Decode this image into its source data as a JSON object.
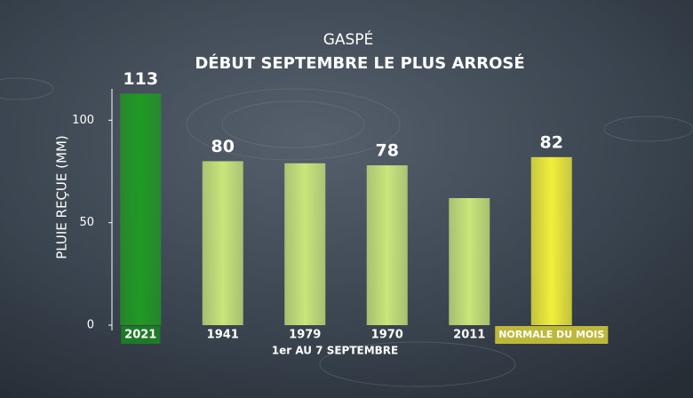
{
  "chart_data": {
    "type": "bar",
    "title": "GASPÉ",
    "subtitle": "DÉBUT SEPTEMBRE LE PLUS ARROSÉ",
    "x_label": "1er AU 7 SEPTEMBRE",
    "y_label": "PLUIE REÇUE (MM)",
    "categories": [
      "2021",
      "1941",
      "1979",
      "1970",
      "2011",
      "NORMALE DU MOIS"
    ],
    "values": [
      113,
      80,
      79,
      78,
      62,
      82
    ],
    "value_labels": [
      "113",
      "80",
      null,
      "78",
      null,
      "82"
    ],
    "colors": [
      "#1f9a22",
      "#c8e67a",
      "#c8e67a",
      "#c8e67a",
      "#c8e67a",
      "#f2ef3a"
    ],
    "label_box_colors": [
      "#1d7a26",
      null,
      null,
      null,
      null,
      "#bdb83a"
    ],
    "ylim": [
      0,
      120
    ],
    "yticks": [
      0,
      50,
      100
    ],
    "grid": false
  }
}
